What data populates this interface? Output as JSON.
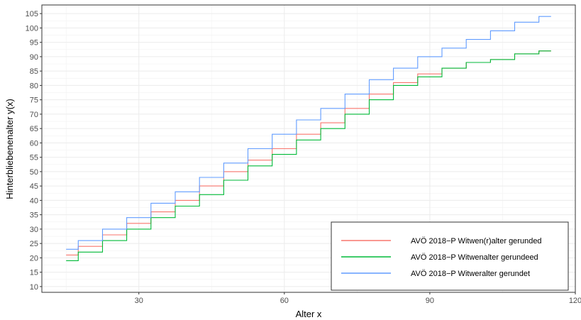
{
  "chart_data": {
    "type": "line",
    "xlabel": "Alter x",
    "ylabel": "Hinterbliebenenalter y(x)",
    "xlim": [
      10,
      120
    ],
    "ylim": [
      8,
      108
    ],
    "x_ticks": [
      30,
      60,
      90,
      120
    ],
    "y_ticks": [
      10,
      15,
      20,
      25,
      30,
      35,
      40,
      45,
      50,
      55,
      60,
      65,
      70,
      75,
      80,
      85,
      90,
      95,
      100,
      105
    ],
    "x_tick_labels": [
      "30",
      "60",
      "90",
      "120"
    ],
    "y_tick_labels": [
      "10",
      "15",
      "20",
      "25",
      "30",
      "35",
      "40",
      "45",
      "50",
      "55",
      "60",
      "65",
      "70",
      "75",
      "80",
      "85",
      "90",
      "95",
      "100",
      "105"
    ],
    "grid": true,
    "legend_position": "bottom-right",
    "x": [
      15,
      20,
      25,
      30,
      35,
      40,
      45,
      50,
      55,
      60,
      65,
      70,
      75,
      80,
      85,
      90,
      95,
      100,
      105,
      110,
      115
    ],
    "series": [
      {
        "name": "AVÖ 2018−P Witwen(r)alter gerunded",
        "color": "#F8766D",
        "values": [
          21,
          24,
          28,
          32,
          36,
          40,
          45,
          50,
          54,
          58,
          63,
          67,
          72,
          77,
          81,
          84,
          86,
          88,
          89,
          91,
          92
        ]
      },
      {
        "name": "AVÖ 2018−P Witwenalter gerundeed",
        "color": "#00BA38",
        "values": [
          19,
          22,
          26,
          30,
          34,
          38,
          42,
          47,
          52,
          56,
          61,
          65,
          70,
          75,
          80,
          83,
          86,
          88,
          89,
          91,
          92
        ]
      },
      {
        "name": "AVÖ 2018−P Witweralter gerundet",
        "color": "#619CFF",
        "values": [
          23,
          26,
          30,
          34,
          39,
          43,
          48,
          53,
          58,
          63,
          68,
          72,
          77,
          82,
          86,
          90,
          93,
          96,
          99,
          102,
          104
        ]
      }
    ]
  }
}
